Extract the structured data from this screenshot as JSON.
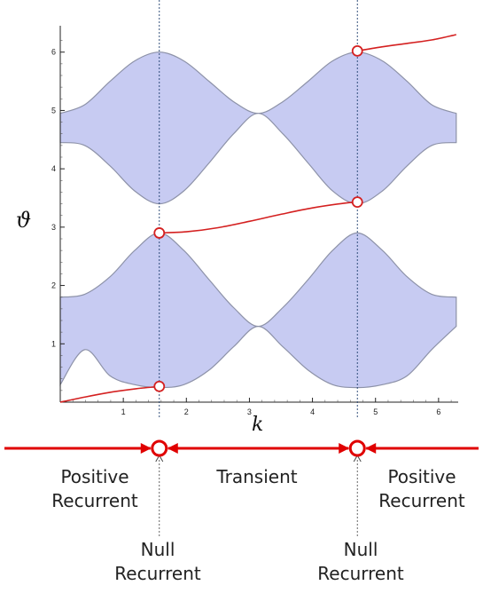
{
  "chart_data": {
    "type": "area",
    "xlabel": "k",
    "ylabel": "ϑ",
    "xlim": [
      0,
      6.283
    ],
    "ylim": [
      0,
      6.3
    ],
    "x_ticks": [
      1,
      2,
      3,
      4,
      5,
      6
    ],
    "y_ticks": [
      1,
      2,
      3,
      4,
      5,
      6
    ],
    "grid": false,
    "critical_k": [
      1.571,
      4.712
    ],
    "bands": [
      {
        "x": [
          0,
          0.39,
          0.79,
          1.18,
          1.571,
          1.96,
          2.36,
          2.75,
          3.14,
          3.53,
          3.93,
          4.32,
          4.712,
          5.11,
          5.5,
          5.89,
          6.28
        ],
        "lower": [
          0.3,
          0.9,
          0.45,
          0.3,
          0.25,
          0.3,
          0.55,
          0.95,
          1.3,
          0.95,
          0.55,
          0.3,
          0.25,
          0.3,
          0.45,
          0.9,
          1.3
        ],
        "upper": [
          1.8,
          1.85,
          2.15,
          2.6,
          2.9,
          2.6,
          2.1,
          1.62,
          1.3,
          1.62,
          2.1,
          2.6,
          2.9,
          2.6,
          2.15,
          1.85,
          1.8
        ],
        "color": "#c7cbf2"
      },
      {
        "x": [
          0,
          0.39,
          0.79,
          1.18,
          1.571,
          1.96,
          2.36,
          2.75,
          3.14,
          3.53,
          3.93,
          4.32,
          4.712,
          5.11,
          5.5,
          5.89,
          6.28
        ],
        "lower": [
          4.45,
          4.4,
          4.05,
          3.62,
          3.4,
          3.62,
          4.1,
          4.6,
          4.95,
          4.6,
          4.1,
          3.62,
          3.4,
          3.62,
          4.05,
          4.4,
          4.45
        ],
        "upper": [
          4.95,
          5.1,
          5.5,
          5.85,
          6.0,
          5.85,
          5.5,
          5.15,
          4.95,
          5.15,
          5.5,
          5.85,
          6.0,
          5.85,
          5.5,
          5.1,
          4.95
        ],
        "color": "#c7cbf2"
      }
    ],
    "eigenvalue_curves": [
      {
        "x": [
          0,
          0.4,
          0.8,
          1.2,
          1.571
        ],
        "y": [
          0,
          0.09,
          0.17,
          0.23,
          0.27
        ],
        "color": "#d42020"
      },
      {
        "x": [
          1.571,
          2.0,
          2.5,
          3.0,
          3.5,
          4.0,
          4.5,
          4.712
        ],
        "y": [
          2.9,
          2.92,
          2.99,
          3.1,
          3.22,
          3.33,
          3.41,
          3.43
        ],
        "color": "#d42020"
      },
      {
        "x": [
          4.712,
          5.1,
          5.5,
          5.9,
          6.28
        ],
        "y": [
          6.02,
          6.09,
          6.15,
          6.21,
          6.3
        ],
        "color": "#d42020"
      }
    ],
    "markers": [
      {
        "x": 1.571,
        "y": 2.9
      },
      {
        "x": 1.571,
        "y": 0.27
      },
      {
        "x": 4.712,
        "y": 6.02
      },
      {
        "x": 4.712,
        "y": 3.43
      }
    ]
  },
  "phase": {
    "regions": [
      "Positive\nRecurrent",
      "Transient",
      "Positive\nRecurrent"
    ],
    "points": [
      "Null\nRecurrent",
      "Null\nRecurrent"
    ],
    "arrow_color": "#e00000"
  }
}
